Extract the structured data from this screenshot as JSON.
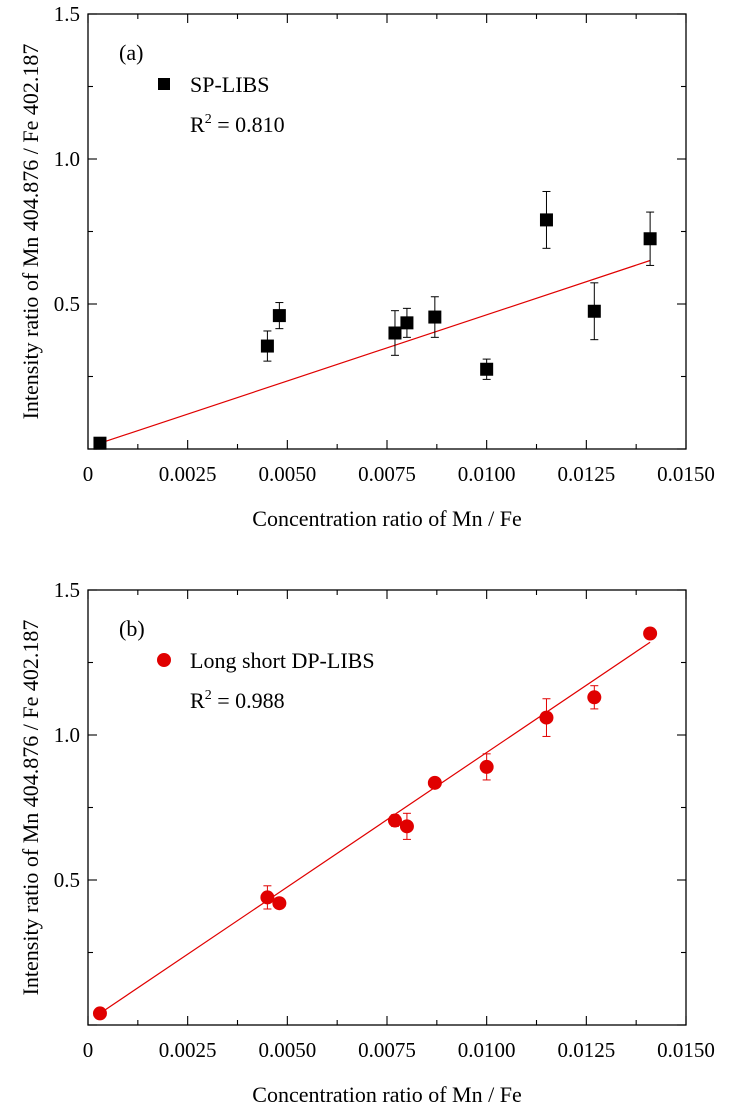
{
  "chart_data": [
    {
      "type": "scatter",
      "panel_label": "(a)",
      "xlabel": "Concentration ratio of Mn / Fe",
      "ylabel": "Intensity ratio of Mn 404.876 / Fe 402.187",
      "xlim": [
        0,
        0.015
      ],
      "ylim": [
        0,
        1.5
      ],
      "x_ticks": [
        "0",
        "0.0025",
        "0.0050",
        "0.0075",
        "0.0100",
        "0.0125",
        "0.0150"
      ],
      "x_tick_values": [
        0,
        0.0025,
        0.005,
        0.0075,
        0.01,
        0.0125,
        0.015
      ],
      "y_ticks": [
        "0.5",
        "1.0",
        "1.5"
      ],
      "y_tick_values": [
        0.5,
        1.0,
        1.5
      ],
      "legend": {
        "label": "SP-LIBS",
        "marker": "square",
        "placement": "top-left"
      },
      "r2": {
        "prefix": "R",
        "sup": "2",
        "value": " = 0.810"
      },
      "color": "#000000",
      "fit_color": "#e00000",
      "series": [
        {
          "name": "SP-LIBS",
          "marker": "square",
          "x": [
            0.0003,
            0.0045,
            0.0048,
            0.0077,
            0.008,
            0.0087,
            0.01,
            0.0115,
            0.0127,
            0.0141
          ],
          "y": [
            0.02,
            0.355,
            0.46,
            0.4,
            0.435,
            0.455,
            0.275,
            0.79,
            0.475,
            0.725
          ],
          "err": [
            0,
            0.052,
            0.045,
            0.077,
            0.05,
            0.07,
            0.035,
            0.098,
            0.098,
            0.092
          ]
        }
      ],
      "fit_line": {
        "x": [
          0.0003,
          0.0141
        ],
        "y": [
          0.02,
          0.65
        ]
      }
    },
    {
      "type": "scatter",
      "panel_label": "(b)",
      "xlabel": "Concentration ratio of Mn / Fe",
      "ylabel": "Intensity ratio of Mn 404.876 / Fe 402.187",
      "xlim": [
        0,
        0.015
      ],
      "ylim": [
        0,
        1.5
      ],
      "x_ticks": [
        "0",
        "0.0025",
        "0.0050",
        "0.0075",
        "0.0100",
        "0.0125",
        "0.0150"
      ],
      "x_tick_values": [
        0,
        0.0025,
        0.005,
        0.0075,
        0.01,
        0.0125,
        0.015
      ],
      "y_ticks": [
        "0.5",
        "1.0",
        "1.5"
      ],
      "y_tick_values": [
        0.5,
        1.0,
        1.5
      ],
      "legend": {
        "label": "Long short DP-LIBS",
        "marker": "circle",
        "placement": "top-left"
      },
      "r2": {
        "prefix": "R",
        "sup": "2",
        "value": " = 0.988"
      },
      "color": "#e00000",
      "fit_color": "#e00000",
      "series": [
        {
          "name": "Long short DP-LIBS",
          "marker": "circle",
          "x": [
            0.0003,
            0.0045,
            0.0048,
            0.0077,
            0.008,
            0.0087,
            0.01,
            0.0115,
            0.0127,
            0.0141
          ],
          "y": [
            0.04,
            0.44,
            0.42,
            0.705,
            0.685,
            0.835,
            0.89,
            1.06,
            1.13,
            1.35
          ],
          "err": [
            0,
            0.04,
            0.018,
            0.02,
            0.045,
            0.012,
            0.045,
            0.065,
            0.04,
            0.012
          ]
        }
      ],
      "fit_line": {
        "x": [
          0.0003,
          0.0141
        ],
        "y": [
          0.04,
          1.32
        ]
      }
    }
  ]
}
